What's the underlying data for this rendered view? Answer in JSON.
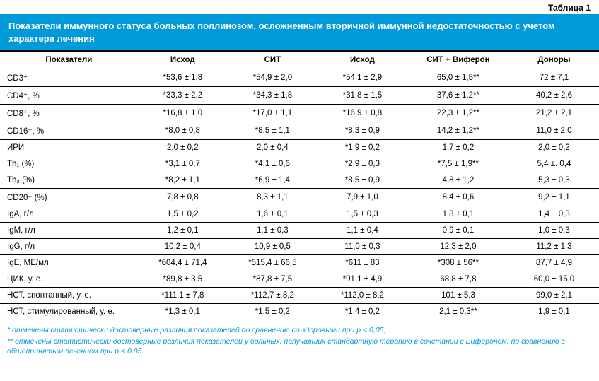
{
  "table_label": "Таблица 1",
  "title": "Показатели иммунного статуса больных поллинозом, осложненным вторичной иммунной недостаточностью с учетом характера лечения",
  "columns": [
    "Показатели",
    "Исход",
    "СИТ",
    "Исход",
    "СИТ + Виферон",
    "Доноры"
  ],
  "rows": [
    {
      "label": "CD3⁺",
      "c1": "*53,6 ± 1,8",
      "c2": "*54,9 ± 2,0",
      "c3": "*54,1 ± 2,9",
      "c4": "65,0 ± 1,5**",
      "c5": "72 ± 7,1"
    },
    {
      "label": "CD4⁺, %",
      "c1": "*33,3 ± 2,2",
      "c2": "*34,3 ± 1,8",
      "c3": "*31,8 ± 1,5",
      "c4": "37,6 ± 1,2**",
      "c5": "40,2 ± 2,6"
    },
    {
      "label": "CD8⁺, %",
      "c1": "*16,8 ± 1,0",
      "c2": "*17,0 ± 1,1",
      "c3": "*16,9 ± 0,8",
      "c4": "22,3 ± 1,2**",
      "c5": "21,2 ± 2,1"
    },
    {
      "label": "CD16⁺, %",
      "c1": "*8,0 ± 0,8",
      "c2": "*8,5 ± 1,1",
      "c3": "*8,3 ± 0,9",
      "c4": "14,2 ± 1,2**",
      "c5": "11,0 ± 2,0"
    },
    {
      "label": "ИРИ",
      "c1": "2,0 ± 0,2",
      "c2": "2,0 ± 0,4",
      "c3": "*1,9 ± 0,2",
      "c4": "1,7 ± 0,2",
      "c5": "2,0 ± 0,2"
    },
    {
      "label": "Th₁ (%)",
      "c1": "*3,1 ± 0,7",
      "c2": "*4,1 ± 0,6",
      "c3": "*2,9 ± 0,3",
      "c4": "*7,5 ± 1,9**",
      "c5": "5,4 ±. 0,4"
    },
    {
      "label": "Th₂ (%)",
      "c1": "*8,2 ± 1,1",
      "c2": "*6,9 ± 1,4",
      "c3": "*8,5 ± 0,9",
      "c4": "4,8 ± 1,2",
      "c5": "5,3 ± 0,3"
    },
    {
      "label": "CD20⁺ (%)",
      "c1": "7,8 ± 0,8",
      "c2": "8,3 ± 1,1",
      "c3": "7,9 ± 1,0",
      "c4": "8,4 ± 0,6",
      "c5": "9,2 ± 1,1"
    },
    {
      "label": "IgA, г/л",
      "c1": "1,5 ± 0,2",
      "c2": "1,6 ± 0,1",
      "c3": "1,5 ± 0,3",
      "c4": "1,8 ± 0,1",
      "c5": "1,4 ± 0,3"
    },
    {
      "label": "IgM, г/л",
      "c1": "1,2 ± 0,1",
      "c2": "1,1 ± 0,3",
      "c3": "1,1 ± 0,4",
      "c4": "0,9 ± 0,1",
      "c5": "1,0 ± 0,3"
    },
    {
      "label": "IgG, г/л",
      "c1": "10,2 ± 0,4",
      "c2": "10,9 ± 0,5",
      "c3": "11,0 ± 0,3",
      "c4": "12,3 ± 2,0",
      "c5": "11,2 ± 1,3"
    },
    {
      "label": "IgE, МЕ/мл",
      "c1": "*604,4 ± 71,4",
      "c2": "*515,4 ± 66,5",
      "c3": "*611 ± 83",
      "c4": "*308 ± 56**",
      "c5": "87,7 ± 4,9"
    },
    {
      "label": "ЦИК, у. е.",
      "c1": "*89,8 ± 3,5",
      "c2": "*87,8 ± 7,5",
      "c3": "*91,1 ± 4,9",
      "c4": "68,8 ± 7,8",
      "c5": "60,0 ± 15,0"
    },
    {
      "label": "НСТ, спонтанный, у. е.",
      "c1": "*111,1 ± 7,8",
      "c2": "*112,7 ± 8,2",
      "c3": "*112,0 ± 8,2",
      "c4": "101 ± 5,3",
      "c5": "99,0 ± 2,1"
    },
    {
      "label": "НСТ, стимулированный, у. е.",
      "c1": "*1,3 ± 0,1",
      "c2": "*1,5 ± 0,2",
      "c3": "*1,4 ± 0,2",
      "c4": "2,1 ± 0,3**",
      "c5": "1,9 ± 0,1"
    }
  ],
  "footnote1": "* отмечены статистически достоверные различия показателей по сравнению со здоровыми при p < 0,05;",
  "footnote2": "** отмечены статистически достоверные различия показателей у больных, получавших стандартную терапию в сочетании с Вифероном, по сравнению с общепринятым лечением при p < 0,05.",
  "col_widths": [
    "23%",
    "15%",
    "15%",
    "15%",
    "17%",
    "15%"
  ],
  "colors": {
    "header_bg": "#0099d9",
    "header_fg": "#ffffff",
    "border": "#000000",
    "footnote": "#0099d9"
  }
}
